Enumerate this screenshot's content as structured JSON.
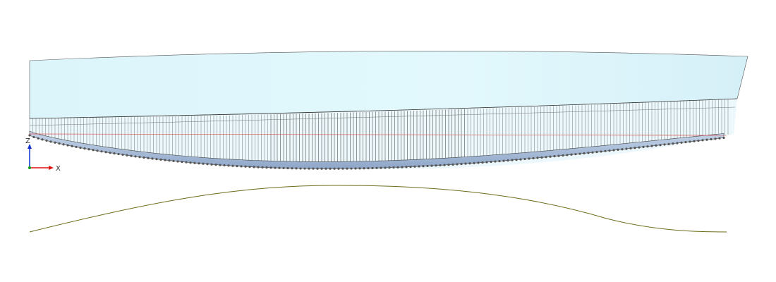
{
  "axes": {
    "x": "X",
    "z": "Z"
  }
}
